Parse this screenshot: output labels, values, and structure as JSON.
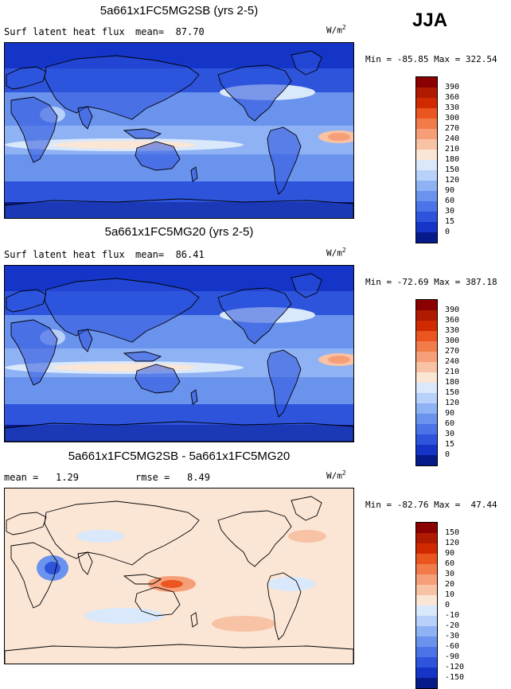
{
  "season": "JJA",
  "units_base": "W/m",
  "units_exp": "2",
  "panels": [
    {
      "title": "5a661x1FC5MG2SB (yrs 2-5)",
      "variable": "Surf latent heat flux",
      "stat_line": "mean=  87.70",
      "minmax": "Min = -85.85 Max = 322.54",
      "levels": [
        "390",
        "360",
        "330",
        "300",
        "270",
        "240",
        "210",
        "180",
        "150",
        "120",
        "90",
        "60",
        "30",
        "15",
        "0"
      ],
      "colors": [
        "#8b0000",
        "#b01a00",
        "#d22a00",
        "#ea5520",
        "#f27b4a",
        "#f69e78",
        "#f8c2a4",
        "#fbe6d6",
        "#d9e8fb",
        "#b7d1fa",
        "#8fb2f4",
        "#6a93ee",
        "#4a74e8",
        "#2e54dc",
        "#1435c8",
        "#061a8a"
      ],
      "style": "abs"
    },
    {
      "title": "5a661x1FC5MG20 (yrs 2-5)",
      "variable": "Surf latent heat flux",
      "stat_line": "mean=  86.41",
      "minmax": "Min = -72.69 Max = 387.18",
      "levels": [
        "390",
        "360",
        "330",
        "300",
        "270",
        "240",
        "210",
        "180",
        "150",
        "120",
        "90",
        "60",
        "30",
        "15",
        "0"
      ],
      "colors": [
        "#8b0000",
        "#b01a00",
        "#d22a00",
        "#ea5520",
        "#f27b4a",
        "#f69e78",
        "#f8c2a4",
        "#fbe6d6",
        "#d9e8fb",
        "#b7d1fa",
        "#8fb2f4",
        "#6a93ee",
        "#4a74e8",
        "#2e54dc",
        "#1435c8",
        "#061a8a"
      ],
      "style": "abs"
    },
    {
      "title": "5a661x1FC5MG2SB - 5a661x1FC5MG20",
      "variable": "mean =   1.29",
      "stat_line": "rmse =   8.49",
      "minmax": "Min = -82.76 Max =  47.44",
      "levels": [
        "150",
        "120",
        "90",
        "60",
        "30",
        "20",
        "10",
        "0",
        "-10",
        "-20",
        "-30",
        "-60",
        "-90",
        "-120",
        "-150"
      ],
      "colors": [
        "#8b0000",
        "#b01a00",
        "#d22a00",
        "#ea5520",
        "#f27b4a",
        "#f69e78",
        "#f8c2a4",
        "#fbe6d6",
        "#d9e8fb",
        "#b7d1fa",
        "#8fb2f4",
        "#6a93ee",
        "#4a74e8",
        "#2e54dc",
        "#1435c8",
        "#061a8a"
      ],
      "style": "diff"
    }
  ],
  "chart_data": [
    {
      "type": "heatmap",
      "title": "5a661x1FC5MG2SB (yrs 2-5)",
      "variable": "Surf latent heat flux",
      "units": "W/m2",
      "season": "JJA",
      "mean": 87.7,
      "min": -85.85,
      "max": 322.54,
      "contour_levels": [
        0,
        15,
        30,
        60,
        90,
        120,
        150,
        180,
        210,
        240,
        270,
        300,
        330,
        360,
        390
      ]
    },
    {
      "type": "heatmap",
      "title": "5a661x1FC5MG20 (yrs 2-5)",
      "variable": "Surf latent heat flux",
      "units": "W/m2",
      "season": "JJA",
      "mean": 86.41,
      "min": -72.69,
      "max": 387.18,
      "contour_levels": [
        0,
        15,
        30,
        60,
        90,
        120,
        150,
        180,
        210,
        240,
        270,
        300,
        330,
        360,
        390
      ]
    },
    {
      "type": "heatmap",
      "title": "5a661x1FC5MG2SB - 5a661x1FC5MG20",
      "units": "W/m2",
      "season": "JJA",
      "mean": 1.29,
      "rmse": 8.49,
      "min": -82.76,
      "max": 47.44,
      "contour_levels": [
        -150,
        -120,
        -90,
        -60,
        -30,
        -20,
        -10,
        0,
        10,
        20,
        30,
        60,
        90,
        120,
        150
      ]
    }
  ]
}
